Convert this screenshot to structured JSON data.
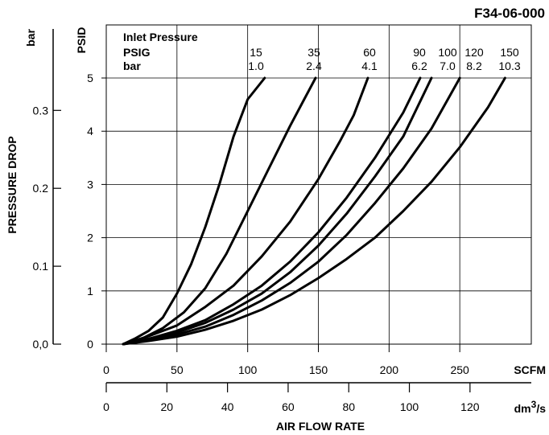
{
  "figure_id": "F34-06-000",
  "chart_data": {
    "type": "line",
    "title": "",
    "ylabel_left": "PRESSURE DROP",
    "yunit_bar": "bar",
    "yunit_psid": "PSID",
    "xunit_scfm": "SCFM",
    "xunit_dm3s_base": "dm",
    "xunit_dm3s_sup": "3",
    "xunit_dm3s_tail": "/s",
    "xlabel_bottom": "AIR FLOW RATE",
    "legend_title": "Inlet Pressure",
    "legend_row1_label": "PSIG",
    "legend_row2_label": "bar",
    "x_scfm_range": [
      0,
      300
    ],
    "y_psid_range": [
      0,
      5
    ],
    "x_scfm_ticks": [
      "0",
      "50",
      "100",
      "150",
      "200",
      "250"
    ],
    "x_scfm_tick_values": [
      0,
      50,
      100,
      150,
      200,
      250
    ],
    "x_dm3s_ticks": [
      "0",
      "20",
      "40",
      "60",
      "80",
      "100",
      "120"
    ],
    "x_dm3s_tick_values": [
      0,
      20,
      40,
      60,
      80,
      100,
      120
    ],
    "y_psid_ticks": [
      "0",
      "1",
      "2",
      "3",
      "4",
      "5"
    ],
    "y_psid_tick_values": [
      0,
      1,
      2,
      3,
      4,
      5
    ],
    "y_bar_ticks": [
      "0,0",
      "0.1",
      "0.2",
      "0.3"
    ],
    "y_bar_tick_values": [
      0,
      0.1,
      0.2,
      0.3
    ],
    "grid": true,
    "series": [
      {
        "name_psig": "15",
        "name_bar": "1.0",
        "x": [
          12,
          20,
          30,
          40,
          50,
          60,
          70,
          80,
          90,
          100,
          112
        ],
        "y": [
          0,
          0.1,
          0.25,
          0.5,
          0.95,
          1.5,
          2.2,
          3.0,
          3.9,
          4.6,
          5.0
        ]
      },
      {
        "name_psig": "35",
        "name_bar": "2.4",
        "x": [
          12,
          25,
          40,
          55,
          70,
          85,
          100,
          115,
          130,
          140,
          148
        ],
        "y": [
          0,
          0.1,
          0.3,
          0.6,
          1.05,
          1.7,
          2.5,
          3.3,
          4.1,
          4.6,
          5.0
        ]
      },
      {
        "name_psig": "60",
        "name_bar": "4.1",
        "x": [
          12,
          30,
          50,
          70,
          90,
          110,
          130,
          150,
          165,
          175,
          185
        ],
        "y": [
          0,
          0.15,
          0.35,
          0.7,
          1.1,
          1.65,
          2.3,
          3.1,
          3.8,
          4.3,
          5.0
        ]
      },
      {
        "name_psig": "90",
        "name_bar": "6.2",
        "x": [
          12,
          30,
          50,
          70,
          90,
          110,
          130,
          150,
          170,
          190,
          210,
          222
        ],
        "y": [
          0,
          0.1,
          0.25,
          0.45,
          0.75,
          1.1,
          1.55,
          2.1,
          2.75,
          3.5,
          4.35,
          5.0
        ]
      },
      {
        "name_psig": "100",
        "name_bar": "7.0",
        "x": [
          12,
          30,
          50,
          70,
          90,
          110,
          130,
          150,
          170,
          190,
          210,
          230
        ],
        "y": [
          0,
          0.1,
          0.22,
          0.4,
          0.65,
          0.95,
          1.35,
          1.85,
          2.45,
          3.15,
          3.9,
          5.0
        ]
      },
      {
        "name_psig": "120",
        "name_bar": "8.2",
        "x": [
          12,
          30,
          50,
          70,
          90,
          110,
          130,
          150,
          170,
          190,
          210,
          230,
          250
        ],
        "y": [
          0,
          0.08,
          0.18,
          0.33,
          0.55,
          0.82,
          1.15,
          1.55,
          2.05,
          2.65,
          3.3,
          4.05,
          5.0
        ]
      },
      {
        "name_psig": "150",
        "name_bar": "10.3",
        "x": [
          12,
          30,
          50,
          70,
          90,
          110,
          130,
          150,
          170,
          190,
          210,
          230,
          250,
          270,
          282
        ],
        "y": [
          0,
          0.06,
          0.14,
          0.27,
          0.44,
          0.65,
          0.92,
          1.24,
          1.6,
          2.0,
          2.5,
          3.05,
          3.7,
          4.45,
          5.0
        ]
      }
    ]
  }
}
